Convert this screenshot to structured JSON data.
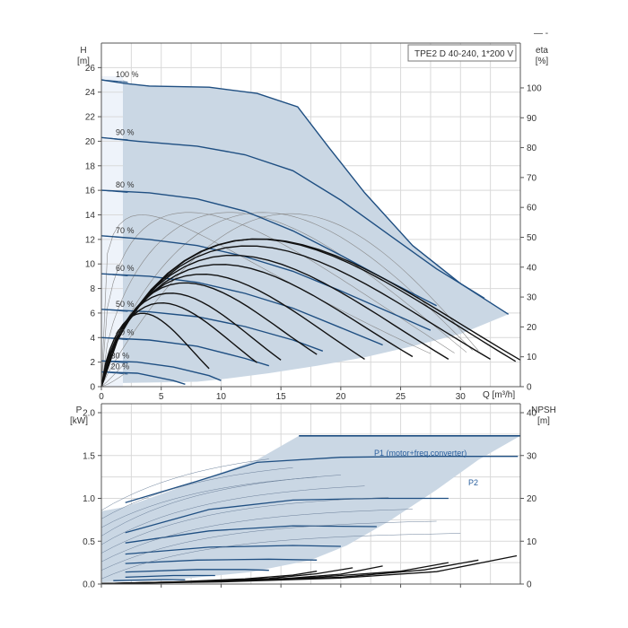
{
  "chart_data": [
    {
      "type": "line",
      "title": "TPE2 D 40-240, 1*200 V",
      "xlabel": "Q [m³/h]",
      "ylabel_left": [
        "H",
        "[m]"
      ],
      "ylabel_right": [
        "eta",
        "[%]"
      ],
      "x_ticks": [
        0,
        5,
        10,
        15,
        20,
        25,
        30
      ],
      "y_ticks": [
        0,
        2,
        4,
        6,
        8,
        10,
        12,
        14,
        16,
        18,
        20,
        22,
        24,
        26
      ],
      "y_right_ticks": [
        0,
        10,
        20,
        30,
        40,
        50,
        60,
        70,
        80,
        90,
        100
      ],
      "xlim": [
        0,
        35
      ],
      "ylim": [
        0,
        28
      ],
      "y_right_lim": [
        0,
        115
      ],
      "grid": true,
      "legend_mark": "—  -",
      "speed_labels": [
        "100 %",
        "90 %",
        "80 %",
        "70 %",
        "60 %",
        "50 %",
        "40 %",
        "30 %",
        "20 %"
      ],
      "operating_envelope": [
        [
          1.8,
          25
        ],
        [
          2.5,
          24.6
        ],
        [
          9,
          24.4
        ],
        [
          13,
          23.9
        ],
        [
          16.4,
          22.8
        ],
        [
          19,
          19.5
        ],
        [
          22,
          15.8
        ],
        [
          26,
          11.5
        ],
        [
          30,
          8.4
        ],
        [
          34,
          5.9
        ],
        [
          34,
          5.9
        ],
        [
          30,
          4.3
        ],
        [
          26,
          3.3
        ],
        [
          22,
          2.4
        ],
        [
          18,
          1.7
        ],
        [
          14,
          1.1
        ],
        [
          10,
          0.6
        ],
        [
          8,
          0.4
        ],
        [
          1.8,
          0.3
        ]
      ],
      "head_series": [
        {
          "name": "100 %",
          "points": [
            [
              0,
              25
            ],
            [
              2,
              24.7
            ],
            [
              4,
              24.5
            ],
            [
              9,
              24.4
            ],
            [
              13,
              23.9
            ],
            [
              16.4,
              22.8
            ],
            [
              19,
              19.5
            ],
            [
              22,
              15.8
            ],
            [
              26,
              11.5
            ],
            [
              30,
              8.4
            ],
            [
              34,
              5.9
            ]
          ]
        },
        {
          "name": "90 %",
          "points": [
            [
              0,
              20.3
            ],
            [
              3,
              20
            ],
            [
              8,
              19.6
            ],
            [
              12,
              18.9
            ],
            [
              16,
              17.6
            ],
            [
              20,
              15.2
            ],
            [
              24,
              12.4
            ],
            [
              28,
              9.6
            ],
            [
              32,
              7.2
            ]
          ]
        },
        {
          "name": "80 %",
          "points": [
            [
              0,
              16
            ],
            [
              4,
              15.8
            ],
            [
              8,
              15.3
            ],
            [
              12,
              14.3
            ],
            [
              16,
              12.7
            ],
            [
              20,
              10.7
            ],
            [
              24,
              8.6
            ],
            [
              28,
              6.6
            ]
          ]
        },
        {
          "name": "70 %",
          "points": [
            [
              0,
              12.3
            ],
            [
              4,
              12
            ],
            [
              8,
              11.5
            ],
            [
              12,
              10.6
            ],
            [
              16,
              9.4
            ],
            [
              20,
              7.8
            ],
            [
              24,
              6.1
            ],
            [
              27.5,
              4.6
            ]
          ]
        },
        {
          "name": "60 %",
          "points": [
            [
              0,
              9.2
            ],
            [
              4,
              9
            ],
            [
              8,
              8.5
            ],
            [
              12,
              7.6
            ],
            [
              16,
              6.4
            ],
            [
              20,
              4.8
            ],
            [
              23.5,
              3.4
            ]
          ]
        },
        {
          "name": "50 %",
          "points": [
            [
              0,
              6.3
            ],
            [
              4,
              6.1
            ],
            [
              8,
              5.7
            ],
            [
              12,
              4.9
            ],
            [
              16,
              3.8
            ],
            [
              18.5,
              2.9
            ]
          ]
        },
        {
          "name": "40 %",
          "points": [
            [
              0,
              4
            ],
            [
              4,
              3.8
            ],
            [
              8,
              3.3
            ],
            [
              12,
              2.3
            ],
            [
              14,
              1.7
            ]
          ]
        },
        {
          "name": "30 %",
          "points": [
            [
              0,
              2.1
            ],
            [
              3,
              2
            ],
            [
              6,
              1.6
            ],
            [
              9,
              0.9
            ],
            [
              10,
              0.5
            ]
          ]
        },
        {
          "name": "20 %",
          "points": [
            [
              0,
              1.2
            ],
            [
              3,
              1.1
            ],
            [
              6,
              0.5
            ],
            [
              7,
              0.2
            ]
          ]
        }
      ]
    },
    {
      "type": "line",
      "xlabel": "",
      "ylabel_left": [
        "P",
        "[kW]"
      ],
      "ylabel_right": [
        "NPSH",
        "[m]"
      ],
      "y_ticks": [
        "0.0",
        "0.5",
        "1.0",
        "1.5",
        "2.0"
      ],
      "y_right_ticks": [
        0,
        10,
        20,
        30,
        40
      ],
      "xlim": [
        0,
        35
      ],
      "ylim": [
        0,
        2.0
      ],
      "y_right_lim": [
        0,
        40
      ],
      "grid": true,
      "annotations": [
        "P1 (motor+freq.converter)",
        "P2"
      ],
      "power_envelope": [
        [
          0,
          0.85
        ],
        [
          2,
          0.9
        ],
        [
          8,
          1.2
        ],
        [
          13,
          1.45
        ],
        [
          16.5,
          1.73
        ],
        [
          35,
          1.73
        ],
        [
          35,
          1.73
        ],
        [
          31.5,
          1.45
        ],
        [
          28,
          1.1
        ],
        [
          24,
          0.73
        ],
        [
          20.5,
          0.45
        ],
        [
          17.5,
          0.28
        ],
        [
          12.5,
          0.14
        ],
        [
          7.5,
          0.07
        ],
        [
          0,
          0.02
        ]
      ],
      "power_series": [
        {
          "name": "P1 (motor+freq.converter)",
          "points": [
            [
              16.5,
              1.73
            ],
            [
              35,
              1.73
            ]
          ]
        },
        {
          "name": "P2",
          "points": [
            [
              2,
              0.95
            ],
            [
              8,
              1.2
            ],
            [
              13,
              1.42
            ],
            [
              20,
              1.48
            ],
            [
              27,
              1.49
            ],
            [
              34.8,
              1.49
            ]
          ]
        },
        {
          "points": [
            [
              2,
              0.6
            ],
            [
              9,
              0.87
            ],
            [
              16,
              0.98
            ],
            [
              23,
              1.0
            ],
            [
              29,
              1.0
            ]
          ]
        },
        {
          "points": [
            [
              2,
              0.48
            ],
            [
              9,
              0.62
            ],
            [
              16,
              0.68
            ],
            [
              23,
              0.67
            ]
          ]
        },
        {
          "points": [
            [
              2,
              0.35
            ],
            [
              9,
              0.43
            ],
            [
              16,
              0.45
            ],
            [
              20,
              0.44
            ]
          ]
        },
        {
          "points": [
            [
              2,
              0.24
            ],
            [
              8,
              0.28
            ],
            [
              14,
              0.29
            ],
            [
              18,
              0.28
            ]
          ]
        },
        {
          "points": [
            [
              2,
              0.14
            ],
            [
              8,
              0.17
            ],
            [
              12,
              0.17
            ],
            [
              14,
              0.16
            ]
          ]
        },
        {
          "points": [
            [
              2,
              0.08
            ],
            [
              6,
              0.1
            ],
            [
              9.5,
              0.1
            ]
          ]
        },
        {
          "points": [
            [
              1,
              0.04
            ],
            [
              5,
              0.05
            ],
            [
              7,
              0.05
            ]
          ]
        }
      ],
      "npsh_series": [
        {
          "points": [
            [
              0,
              0.1
            ],
            [
              10,
              0.5
            ],
            [
              20,
              1.4
            ],
            [
              28,
              2.9
            ],
            [
              34.7,
              6.6
            ]
          ]
        },
        {
          "points": [
            [
              0,
              0.1
            ],
            [
              10,
              0.6
            ],
            [
              20,
              1.6
            ],
            [
              27,
              3.3
            ],
            [
              31.5,
              5.6
            ]
          ]
        },
        {
          "points": [
            [
              0,
              0.1
            ],
            [
              10,
              0.7
            ],
            [
              18,
              1.6
            ],
            [
              25,
              3.0
            ],
            [
              29,
              5.0
            ]
          ]
        },
        {
          "points": [
            [
              0,
              0.1
            ],
            [
              8,
              0.5
            ],
            [
              15,
              1.2
            ],
            [
              20,
              2.3
            ],
            [
              23.5,
              4.2
            ]
          ]
        },
        {
          "points": [
            [
              0,
              0.1
            ],
            [
              8,
              0.6
            ],
            [
              14,
              1.3
            ],
            [
              18,
              2.4
            ],
            [
              21,
              3.8
            ]
          ]
        },
        {
          "points": [
            [
              0,
              0.1
            ],
            [
              6,
              0.5
            ],
            [
              12,
              1.2
            ],
            [
              16,
              2.1
            ],
            [
              18,
              3.0
            ]
          ]
        }
      ]
    }
  ],
  "colors": {
    "envelope_fill": "#cad7e4",
    "curve": "#1f4f82",
    "eta": "#111111",
    "grid": "#d9d9d9",
    "axis": "#555555"
  }
}
